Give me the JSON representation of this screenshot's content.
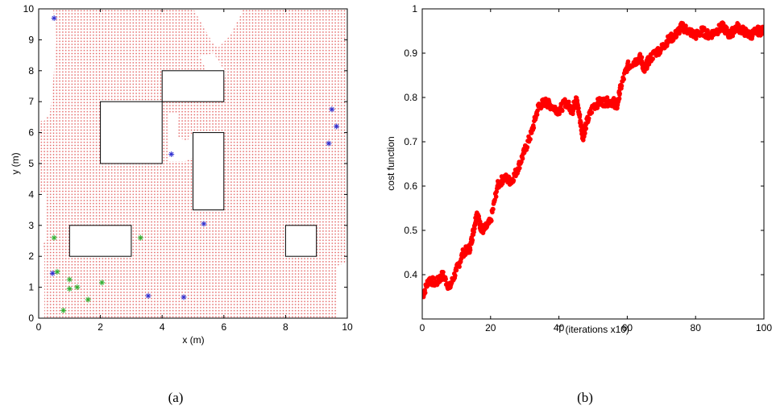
{
  "chart_data": [
    {
      "type": "scatter",
      "caption": "(a)",
      "xlabel": "x (m)",
      "ylabel": "y (m)",
      "xlim": [
        0,
        10
      ],
      "ylim": [
        0,
        10
      ],
      "xticks": [
        0,
        2,
        4,
        6,
        8,
        10
      ],
      "yticks": [
        0,
        1,
        2,
        3,
        4,
        5,
        6,
        7,
        8,
        9,
        10
      ],
      "grid": false,
      "colors": {
        "coverage": "#e05050",
        "blue_marker": "#3030d0",
        "green_marker": "#30b030",
        "obstacle": "#000000"
      },
      "obstacles": [
        {
          "x": [
            2,
            4
          ],
          "y": [
            5,
            7
          ]
        },
        {
          "x": [
            4,
            6
          ],
          "y": [
            7,
            8
          ]
        },
        {
          "x": [
            5,
            6
          ],
          "y": [
            3.5,
            6
          ]
        },
        {
          "x": [
            1,
            3
          ],
          "y": [
            2,
            3
          ]
        },
        {
          "x": [
            8,
            9
          ],
          "y": [
            2,
            3
          ]
        }
      ],
      "series": [
        {
          "marker": "blue-asterisk",
          "points": [
            [
              0.5,
              9.7
            ],
            [
              4.3,
              5.3
            ],
            [
              5.35,
              3.05
            ],
            [
              3.55,
              0.72
            ],
            [
              4.7,
              0.68
            ],
            [
              0.45,
              1.45
            ],
            [
              9.5,
              6.75
            ],
            [
              9.65,
              6.2
            ],
            [
              9.4,
              5.65
            ]
          ]
        },
        {
          "marker": "green-asterisk",
          "points": [
            [
              0.5,
              2.6
            ],
            [
              3.3,
              2.6
            ],
            [
              0.6,
              1.5
            ],
            [
              1.0,
              1.25
            ],
            [
              1.0,
              0.95
            ],
            [
              1.25,
              1.0
            ],
            [
              2.05,
              1.15
            ],
            [
              1.6,
              0.6
            ],
            [
              0.8,
              0.25
            ]
          ]
        }
      ]
    },
    {
      "type": "scatter",
      "caption": "(b)",
      "xlabel": "T (iterations x10)",
      "ylabel": "cost function",
      "xlim": [
        0,
        100
      ],
      "ylim": [
        0.3,
        1
      ],
      "xticks": [
        0,
        20,
        40,
        60,
        80,
        100
      ],
      "yticks": [
        0.4,
        0.5,
        0.6,
        0.7,
        0.8,
        0.9,
        1
      ],
      "ytick_labels": [
        "0.4",
        "0.5",
        "0.6",
        "0.7",
        "0.8",
        "0.9",
        "1"
      ],
      "grid": false,
      "color": "#ff0000",
      "series": [
        {
          "x": [
            0,
            2,
            4,
            6,
            8,
            10,
            12,
            14,
            15,
            16,
            17,
            18,
            20,
            22,
            24,
            26,
            28,
            30,
            32,
            34,
            36,
            38,
            40,
            42,
            44,
            45,
            46,
            47,
            48,
            50,
            52,
            54,
            56,
            57,
            58,
            60,
            62,
            64,
            65,
            66,
            68,
            70,
            72,
            74,
            76,
            78,
            80,
            82,
            84,
            86,
            88,
            90,
            92,
            94,
            96,
            98,
            100
          ],
          "y": [
            0.35,
            0.39,
            0.38,
            0.4,
            0.37,
            0.41,
            0.45,
            0.46,
            0.5,
            0.54,
            0.51,
            0.5,
            0.52,
            0.6,
            0.62,
            0.61,
            0.64,
            0.68,
            0.72,
            0.78,
            0.79,
            0.78,
            0.77,
            0.79,
            0.77,
            0.8,
            0.76,
            0.71,
            0.74,
            0.78,
            0.79,
            0.79,
            0.79,
            0.78,
            0.82,
            0.87,
            0.88,
            0.89,
            0.86,
            0.88,
            0.9,
            0.91,
            0.93,
            0.94,
            0.96,
            0.95,
            0.94,
            0.95,
            0.94,
            0.95,
            0.96,
            0.94,
            0.96,
            0.95,
            0.94,
            0.95,
            0.95
          ]
        }
      ]
    }
  ]
}
